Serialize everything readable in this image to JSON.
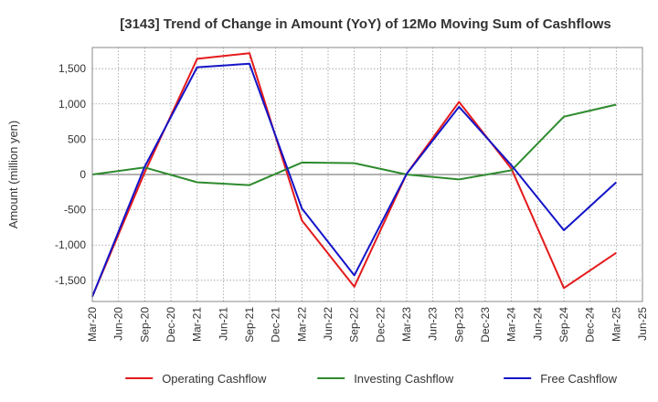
{
  "chart_data": {
    "type": "line",
    "title": "[3143]  Trend of Change in Amount (YoY) of 12Mo Moving Sum of Cashflows",
    "xlabel": "",
    "ylabel": "Amount (million yen)",
    "ylim": [
      -1800,
      1800
    ],
    "yticks": [
      1500,
      1000,
      500,
      0,
      -500,
      -1000,
      -1500
    ],
    "ytick_labels": [
      "1,500",
      "1,000",
      "500",
      "0",
      "-500",
      "-1,000",
      "-1,500"
    ],
    "categories": [
      "Mar-20",
      "Jun-20",
      "Sep-20",
      "Dec-20",
      "Mar-21",
      "Jun-21",
      "Sep-21",
      "Dec-21",
      "Mar-22",
      "Jun-22",
      "Sep-22",
      "Dec-22",
      "Mar-23",
      "Jun-23",
      "Sep-23",
      "Dec-23",
      "Mar-24",
      "Jun-24",
      "Sep-24",
      "Dec-24",
      "Mar-25",
      "Jun-25"
    ],
    "grid": true,
    "legend_position": "bottom",
    "series": [
      {
        "name": "Operating Cashflow",
        "color": "#e41a1c",
        "values": [
          -1730,
          null,
          30,
          null,
          1640,
          null,
          1720,
          null,
          -650,
          null,
          -1590,
          null,
          10,
          null,
          1030,
          null,
          80,
          null,
          -1610,
          null,
          -1110,
          null
        ]
      },
      {
        "name": "Investing Cashflow",
        "color": "#2e8b2e",
        "values": [
          0,
          null,
          100,
          null,
          -110,
          null,
          -150,
          null,
          170,
          null,
          160,
          null,
          0,
          null,
          -70,
          null,
          60,
          null,
          820,
          null,
          990,
          null
        ]
      },
      {
        "name": "Free Cashflow",
        "color": "#1414c8",
        "values": [
          -1730,
          null,
          110,
          null,
          1520,
          null,
          1570,
          null,
          -480,
          null,
          -1430,
          null,
          10,
          null,
          960,
          null,
          130,
          null,
          -790,
          null,
          -110,
          null
        ]
      }
    ]
  }
}
